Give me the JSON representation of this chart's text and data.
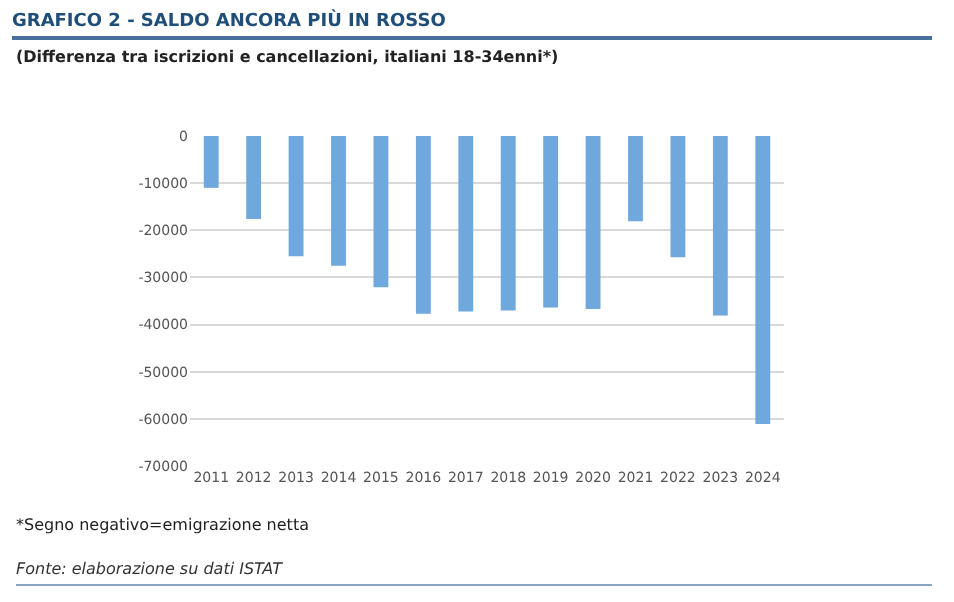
{
  "chart_data": {
    "type": "bar",
    "title": "GRAFICO 2 - SALDO ANCORA PIÙ IN ROSSO",
    "subtitle": "(Differenza tra iscrizioni e cancellazioni, italiani 18-34enni*)",
    "categories": [
      "2011",
      "2012",
      "2013",
      "2014",
      "2015",
      "2016",
      "2017",
      "2018",
      "2019",
      "2020",
      "2021",
      "2022",
      "2023",
      "2024"
    ],
    "values": [
      -11000,
      -17600,
      -25500,
      -27500,
      -32100,
      -37700,
      -37200,
      -37000,
      -36400,
      -36700,
      -18100,
      -25700,
      -38100,
      -61100
    ],
    "color": "#6fa8dc",
    "ylim": [
      -70000,
      0
    ],
    "yticks": [
      -70000,
      -60000,
      -50000,
      -40000,
      -30000,
      -20000,
      -10000,
      0
    ],
    "grid": "y",
    "annotations": [
      "*Segno negativo=emigrazione netta",
      "Fonte: elaborazione su dati ISTAT"
    ]
  }
}
